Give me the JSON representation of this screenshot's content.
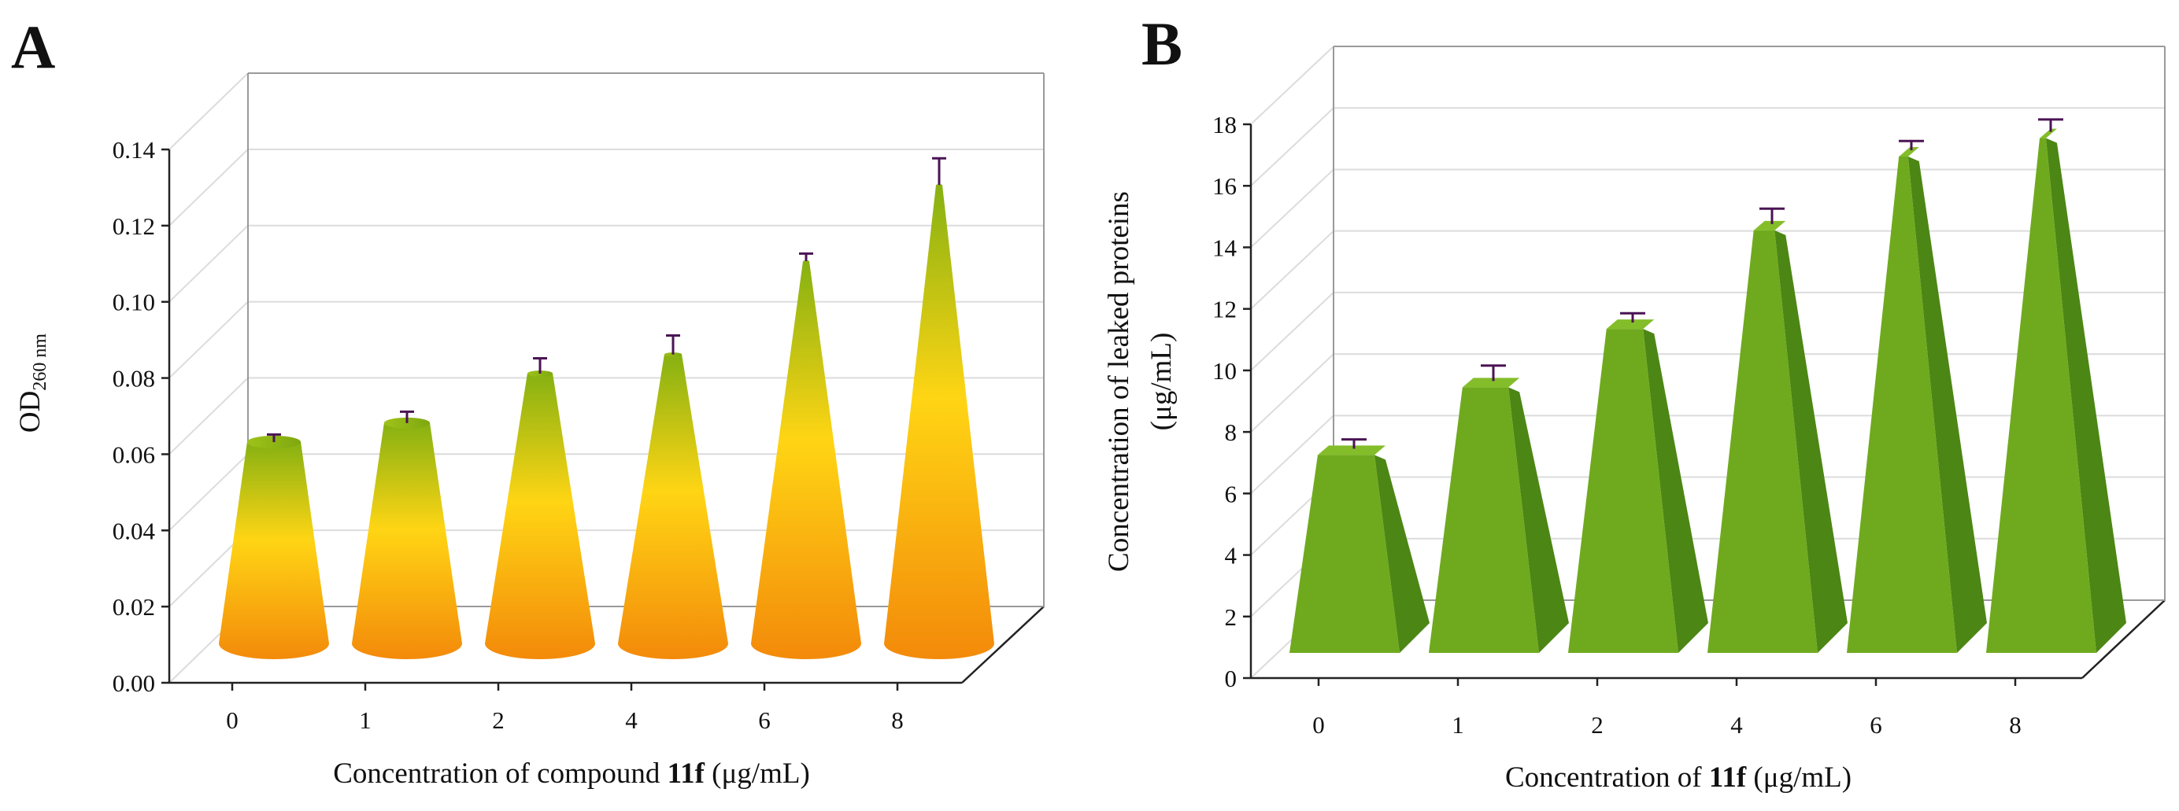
{
  "chart_data": [
    {
      "panel_letter": "A",
      "type": "bar",
      "style": "3d-cone",
      "categories": [
        "0",
        "1",
        "2",
        "4",
        "6",
        "8"
      ],
      "values": [
        0.0545,
        0.0595,
        0.0725,
        0.0775,
        0.102,
        0.122
      ],
      "errors": [
        0.002,
        0.003,
        0.004,
        0.005,
        0.002,
        0.007
      ],
      "ylabel_main": "OD",
      "ylabel_sub": "260 nm",
      "xlabel_pre": "Concentration of compound ",
      "xlabel_bold": "11f",
      "xlabel_post": " (μg/mL)",
      "ylim": [
        0,
        0.14
      ],
      "yticks": [
        "0.00",
        "0.02",
        "0.04",
        "0.06",
        "0.08",
        "0.10",
        "0.12",
        "0.14"
      ],
      "grid": true,
      "colors": {
        "top": "#8db516",
        "mid": "#ffd514",
        "bottom": "#f48a0c",
        "error": "#4a1454"
      }
    },
    {
      "panel_letter": "B",
      "type": "bar",
      "style": "3d-pyramid",
      "categories": [
        "0",
        "1",
        "2",
        "4",
        "6",
        "8"
      ],
      "values": [
        6.1,
        8.3,
        10.2,
        13.4,
        15.8,
        16.4
      ],
      "errors": [
        0.2,
        0.4,
        0.2,
        0.4,
        0.2,
        0.3
      ],
      "ylabel_line1": "Concentration of leaked proteins",
      "ylabel_line2": "(μg/mL)",
      "xlabel_pre": "Concentration of ",
      "xlabel_bold": "11f",
      "xlabel_post": " (μg/mL)",
      "ylim": [
        0,
        18
      ],
      "yticks": [
        "0",
        "2",
        "4",
        "6",
        "8",
        "10",
        "12",
        "14",
        "16",
        "18"
      ],
      "grid": true,
      "colors": {
        "front": "#6faa1e",
        "side": "#4c8615",
        "error": "#4a1454"
      }
    }
  ]
}
